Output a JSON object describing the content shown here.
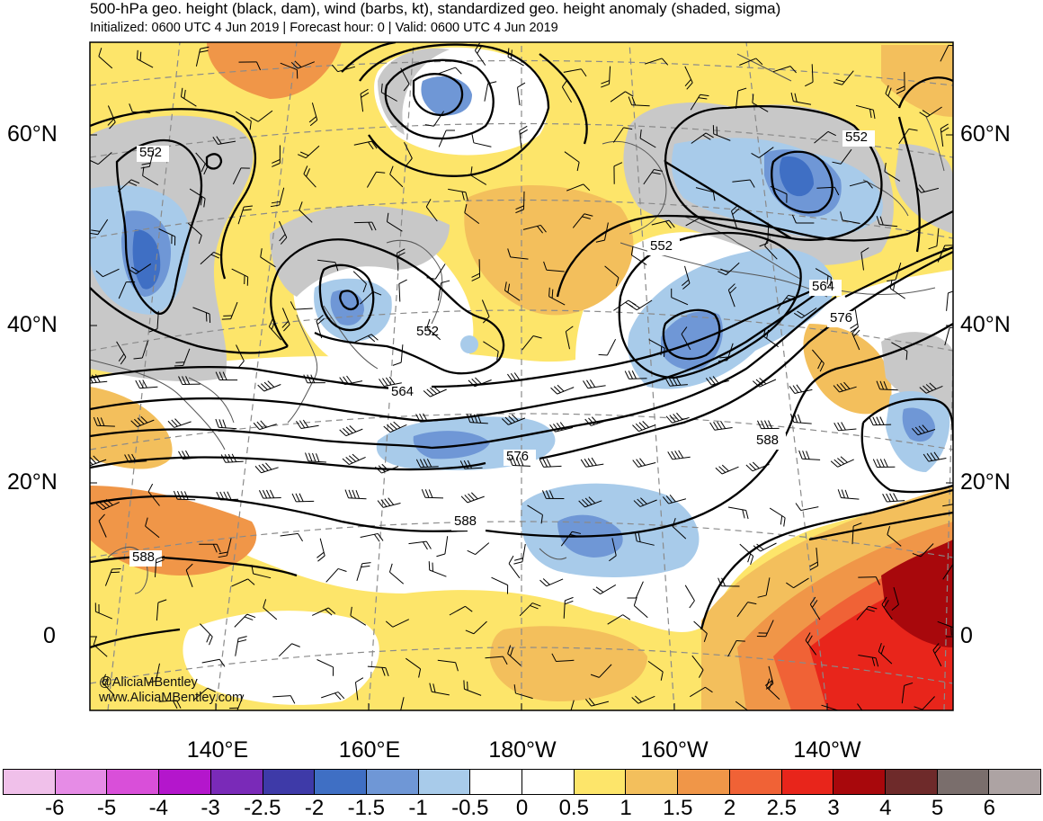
{
  "header": {
    "title": "500-hPa geo. height (black, dam), wind (barbs, kt), standardized geo. height anomaly (shaded, sigma)",
    "subtitle": "Initialized: 0600 UTC 4 Jun 2019 | Forecast hour: 0 | Valid: 0600 UTC 4 Jun 2019"
  },
  "map": {
    "lat_labels": [
      "60°N",
      "40°N",
      "20°N",
      "0"
    ],
    "lon_labels": [
      "140°E",
      "160°E",
      "180°W",
      "160°W",
      "140°W"
    ],
    "contour_labels": [
      "552",
      "552",
      "552",
      "552",
      "564",
      "564",
      "576",
      "576",
      "588",
      "588",
      "588"
    ],
    "credit_handle": "@AliciaMBentley",
    "credit_url": "www.AliciaMBentley.com"
  },
  "colorbar": {
    "ticks": [
      "-6",
      "-5",
      "-4",
      "-3",
      "-2.5",
      "-2",
      "-1.5",
      "-1",
      "-0.5",
      "0",
      "0.5",
      "1",
      "1.5",
      "2",
      "2.5",
      "3",
      "4",
      "5",
      "6"
    ],
    "colors": [
      "#f0c0ea",
      "#e68ce6",
      "#d94fd9",
      "#b416cc",
      "#7a2ab8",
      "#3e3aa8",
      "#3f6fc4",
      "#6f97d6",
      "#a8cbea",
      "#ffffff",
      "#ffffff",
      "#fde56a",
      "#f3bf5c",
      "#f09648",
      "#f06236",
      "#e8251b",
      "#a8080c",
      "#6e2a2a",
      "#7a6e6c",
      "#ada3a3"
    ]
  }
}
